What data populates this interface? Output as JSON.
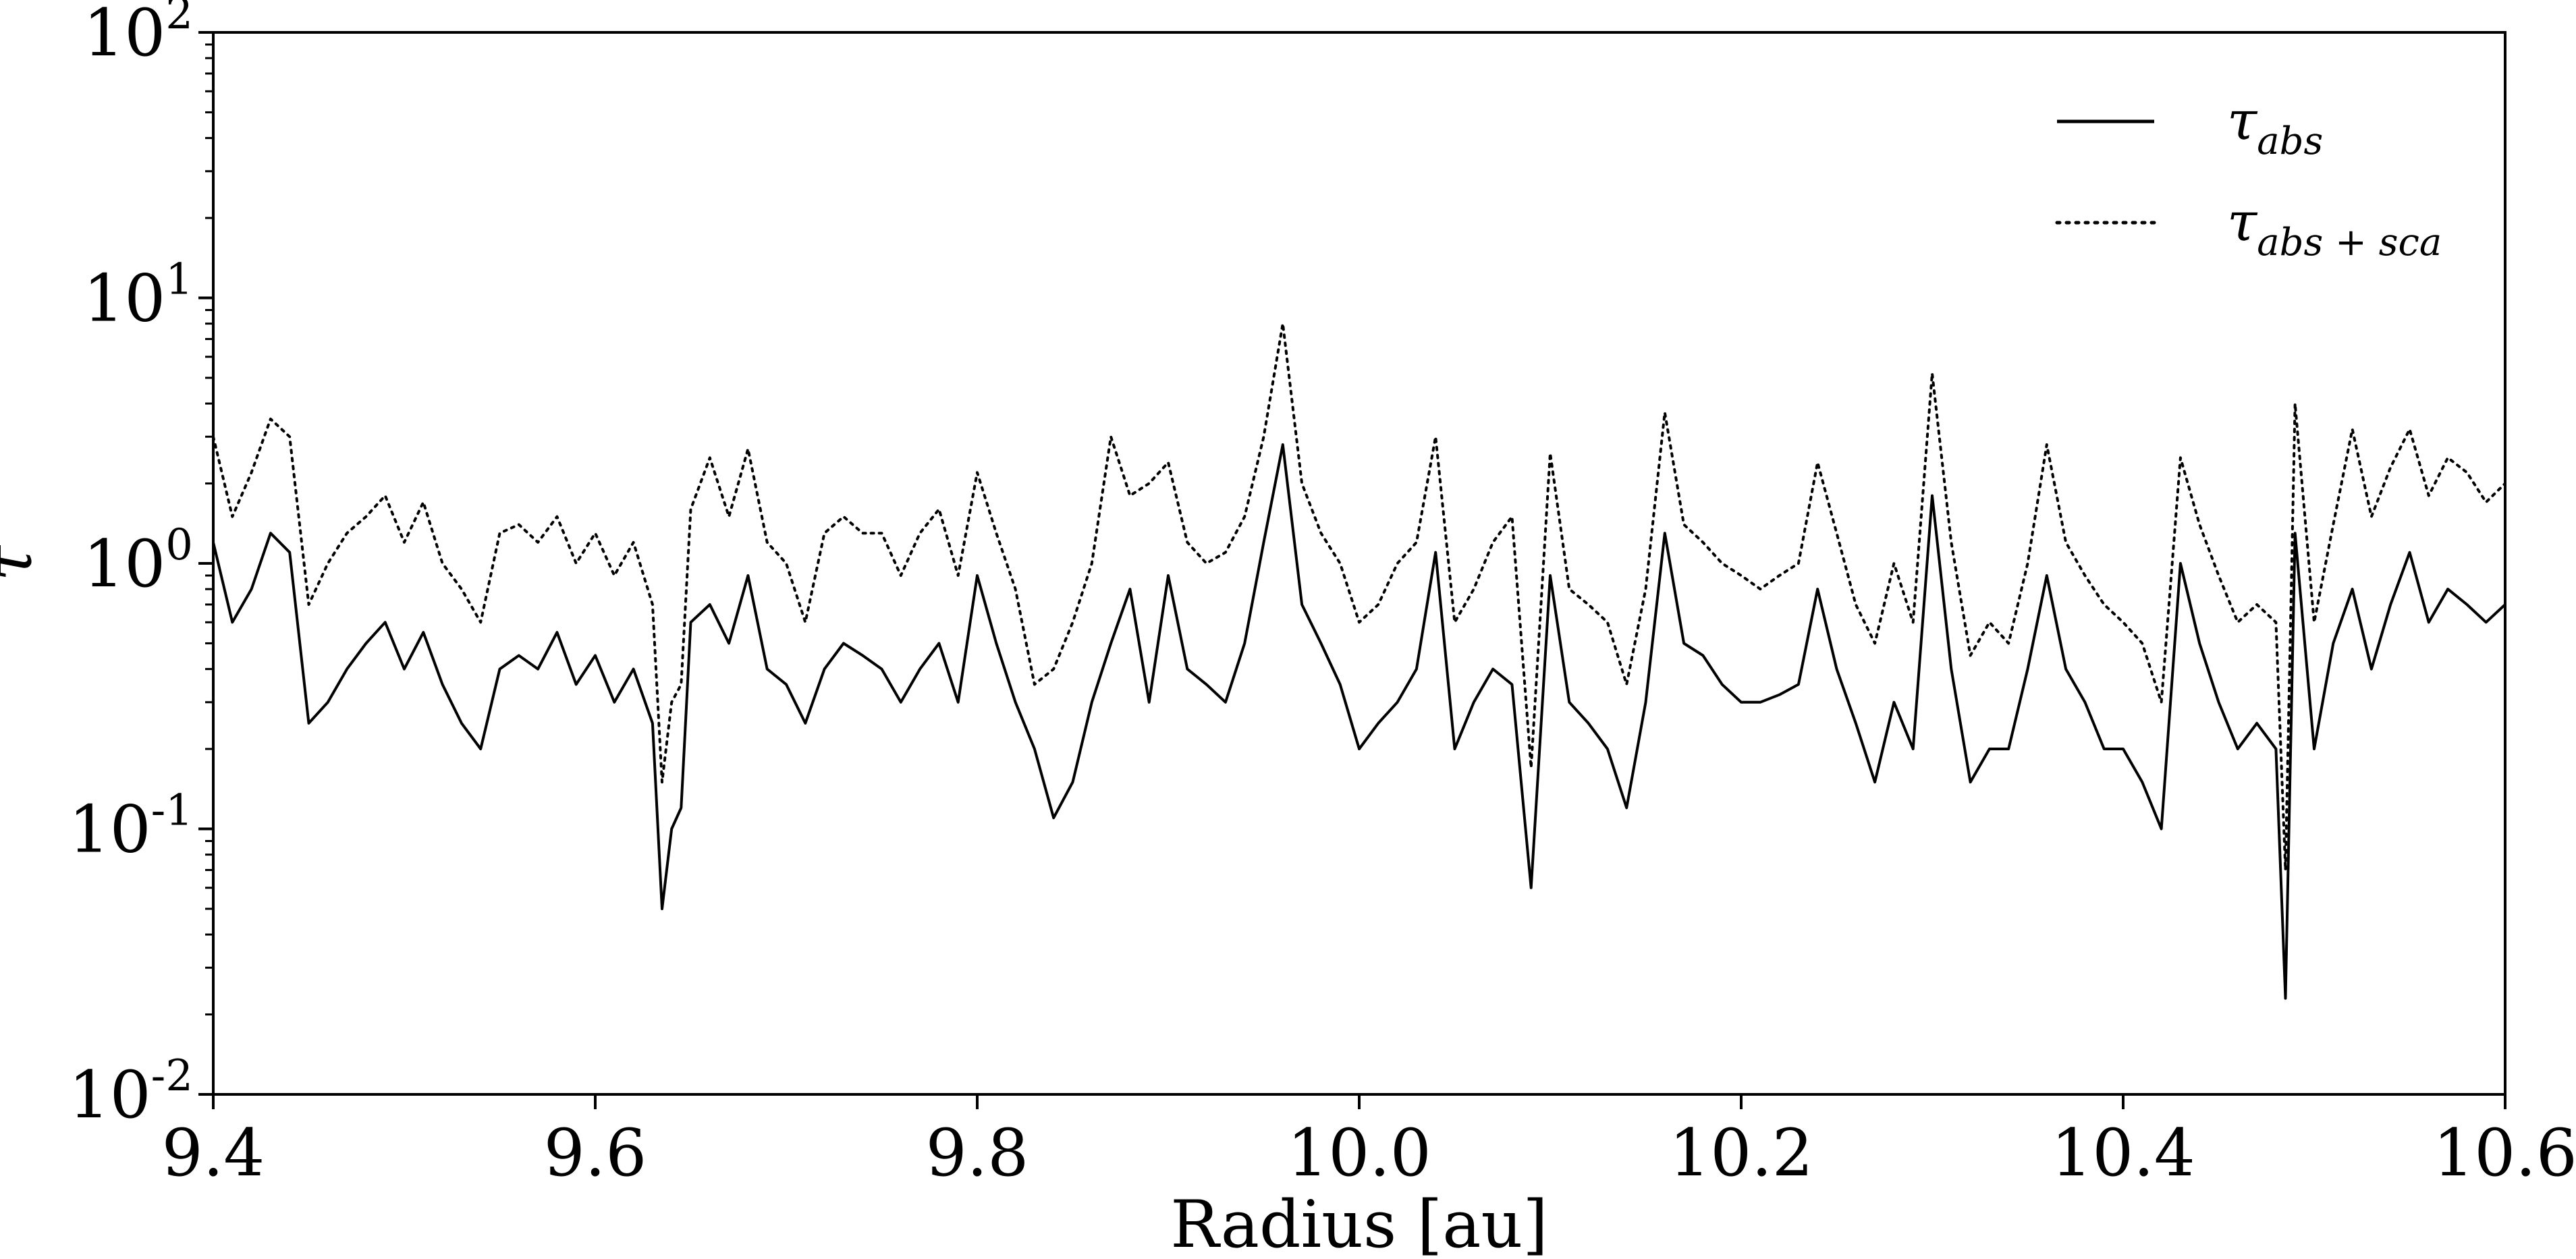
{
  "chart_data": {
    "type": "line",
    "title": "",
    "xlabel": "Radius [au]",
    "ylabel": "τ",
    "xlim": [
      9.4,
      10.6
    ],
    "ylim": [
      0.01,
      100
    ],
    "yscale": "log",
    "grid": false,
    "legend_position": "top-right",
    "xticks": [
      {
        "value": 9.4,
        "label": "9.4"
      },
      {
        "value": 9.6,
        "label": "9.6"
      },
      {
        "value": 9.8,
        "label": "9.8"
      },
      {
        "value": 10.0,
        "label": "10.0"
      },
      {
        "value": 10.2,
        "label": "10.2"
      },
      {
        "value": 10.4,
        "label": "10.4"
      },
      {
        "value": 10.6,
        "label": "10.6"
      }
    ],
    "yticks": [
      {
        "value": 0.01,
        "base": "10",
        "exp": "-2"
      },
      {
        "value": 0.1,
        "base": "10",
        "exp": "-1"
      },
      {
        "value": 1,
        "base": "10",
        "exp": "0"
      },
      {
        "value": 10,
        "base": "10",
        "exp": "1"
      },
      {
        "value": 100,
        "base": "10",
        "exp": "2"
      }
    ],
    "series": [
      {
        "name": "τ_abs",
        "legend_main": "τ",
        "legend_sub": "abs",
        "style": "solid",
        "color": "#000000",
        "x": [
          9.4,
          9.41,
          9.42,
          9.43,
          9.44,
          9.45,
          9.46,
          9.47,
          9.48,
          9.49,
          9.5,
          9.51,
          9.52,
          9.53,
          9.54,
          9.55,
          9.56,
          9.57,
          9.58,
          9.59,
          9.6,
          9.61,
          9.62,
          9.63,
          9.635,
          9.64,
          9.645,
          9.65,
          9.66,
          9.67,
          9.68,
          9.69,
          9.7,
          9.71,
          9.72,
          9.73,
          9.74,
          9.75,
          9.76,
          9.77,
          9.78,
          9.79,
          9.8,
          9.81,
          9.82,
          9.83,
          9.84,
          9.85,
          9.86,
          9.87,
          9.88,
          9.89,
          9.9,
          9.91,
          9.92,
          9.93,
          9.94,
          9.95,
          9.96,
          9.97,
          9.98,
          9.99,
          10.0,
          10.01,
          10.02,
          10.03,
          10.04,
          10.05,
          10.06,
          10.07,
          10.08,
          10.09,
          10.1,
          10.11,
          10.12,
          10.13,
          10.14,
          10.15,
          10.16,
          10.17,
          10.18,
          10.19,
          10.2,
          10.21,
          10.22,
          10.23,
          10.24,
          10.25,
          10.26,
          10.27,
          10.28,
          10.29,
          10.3,
          10.31,
          10.32,
          10.33,
          10.34,
          10.35,
          10.36,
          10.37,
          10.38,
          10.39,
          10.4,
          10.41,
          10.42,
          10.43,
          10.44,
          10.45,
          10.46,
          10.47,
          10.48,
          10.485,
          10.49,
          10.5,
          10.51,
          10.52,
          10.53,
          10.54,
          10.55,
          10.56,
          10.57,
          10.58,
          10.59,
          10.6
        ],
        "y": [
          1.2,
          0.6,
          0.8,
          1.3,
          1.1,
          0.25,
          0.3,
          0.4,
          0.5,
          0.6,
          0.4,
          0.55,
          0.35,
          0.25,
          0.2,
          0.4,
          0.45,
          0.4,
          0.55,
          0.35,
          0.45,
          0.3,
          0.4,
          0.25,
          0.05,
          0.1,
          0.12,
          0.6,
          0.7,
          0.5,
          0.9,
          0.4,
          0.35,
          0.25,
          0.4,
          0.5,
          0.45,
          0.4,
          0.3,
          0.4,
          0.5,
          0.3,
          0.9,
          0.5,
          0.3,
          0.2,
          0.11,
          0.15,
          0.3,
          0.5,
          0.8,
          0.3,
          0.9,
          0.4,
          0.35,
          0.3,
          0.5,
          1.2,
          2.8,
          0.7,
          0.5,
          0.35,
          0.2,
          0.25,
          0.3,
          0.4,
          1.1,
          0.2,
          0.3,
          0.4,
          0.35,
          0.06,
          0.9,
          0.3,
          0.25,
          0.2,
          0.12,
          0.3,
          1.3,
          0.5,
          0.45,
          0.35,
          0.3,
          0.3,
          0.32,
          0.35,
          0.8,
          0.4,
          0.25,
          0.15,
          0.3,
          0.2,
          1.8,
          0.4,
          0.15,
          0.2,
          0.2,
          0.4,
          0.9,
          0.4,
          0.3,
          0.2,
          0.2,
          0.15,
          0.1,
          1.0,
          0.5,
          0.3,
          0.2,
          0.25,
          0.2,
          0.023,
          1.3,
          0.2,
          0.5,
          0.8,
          0.4,
          0.7,
          1.1,
          0.6,
          0.8,
          0.7,
          0.6,
          0.7
        ]
      },
      {
        "name": "τ_abs+sca",
        "legend_main": "τ",
        "legend_sub": "abs + sca",
        "style": "dotted",
        "color": "#000000",
        "x": [
          9.4,
          9.41,
          9.42,
          9.43,
          9.44,
          9.45,
          9.46,
          9.47,
          9.48,
          9.49,
          9.5,
          9.51,
          9.52,
          9.53,
          9.54,
          9.55,
          9.56,
          9.57,
          9.58,
          9.59,
          9.6,
          9.61,
          9.62,
          9.63,
          9.635,
          9.64,
          9.645,
          9.65,
          9.66,
          9.67,
          9.68,
          9.69,
          9.7,
          9.71,
          9.72,
          9.73,
          9.74,
          9.75,
          9.76,
          9.77,
          9.78,
          9.79,
          9.8,
          9.81,
          9.82,
          9.83,
          9.84,
          9.85,
          9.86,
          9.87,
          9.88,
          9.89,
          9.9,
          9.91,
          9.92,
          9.93,
          9.94,
          9.95,
          9.96,
          9.97,
          9.98,
          9.99,
          10.0,
          10.01,
          10.02,
          10.03,
          10.04,
          10.05,
          10.06,
          10.07,
          10.08,
          10.09,
          10.1,
          10.11,
          10.12,
          10.13,
          10.14,
          10.15,
          10.16,
          10.17,
          10.18,
          10.19,
          10.2,
          10.21,
          10.22,
          10.23,
          10.24,
          10.25,
          10.26,
          10.27,
          10.28,
          10.29,
          10.3,
          10.31,
          10.32,
          10.33,
          10.34,
          10.35,
          10.36,
          10.37,
          10.38,
          10.39,
          10.4,
          10.41,
          10.42,
          10.43,
          10.44,
          10.45,
          10.46,
          10.47,
          10.48,
          10.485,
          10.49,
          10.5,
          10.51,
          10.52,
          10.53,
          10.54,
          10.55,
          10.56,
          10.57,
          10.58,
          10.59,
          10.6
        ],
        "y": [
          3.0,
          1.5,
          2.2,
          3.5,
          3.0,
          0.7,
          1.0,
          1.3,
          1.5,
          1.8,
          1.2,
          1.7,
          1.0,
          0.8,
          0.6,
          1.3,
          1.4,
          1.2,
          1.5,
          1.0,
          1.3,
          0.9,
          1.2,
          0.7,
          0.15,
          0.3,
          0.35,
          1.6,
          2.5,
          1.5,
          2.7,
          1.2,
          1.0,
          0.6,
          1.3,
          1.5,
          1.3,
          1.3,
          0.9,
          1.3,
          1.6,
          0.9,
          2.2,
          1.3,
          0.8,
          0.35,
          0.4,
          0.6,
          1.0,
          3.0,
          1.8,
          2.0,
          2.4,
          1.2,
          1.0,
          1.1,
          1.5,
          3.0,
          8.0,
          2.0,
          1.3,
          1.0,
          0.6,
          0.7,
          1.0,
          1.2,
          3.0,
          0.6,
          0.8,
          1.2,
          1.5,
          0.17,
          2.6,
          0.8,
          0.7,
          0.6,
          0.35,
          0.8,
          3.7,
          1.4,
          1.2,
          1.0,
          0.9,
          0.8,
          0.9,
          1.0,
          2.4,
          1.3,
          0.7,
          0.5,
          1.0,
          0.6,
          5.2,
          1.2,
          0.45,
          0.6,
          0.5,
          1.0,
          2.8,
          1.2,
          0.9,
          0.7,
          0.6,
          0.5,
          0.3,
          2.5,
          1.4,
          0.9,
          0.6,
          0.7,
          0.6,
          0.07,
          4.0,
          0.6,
          1.4,
          3.2,
          1.5,
          2.3,
          3.2,
          1.8,
          2.5,
          2.2,
          1.7,
          2.0
        ]
      }
    ]
  }
}
